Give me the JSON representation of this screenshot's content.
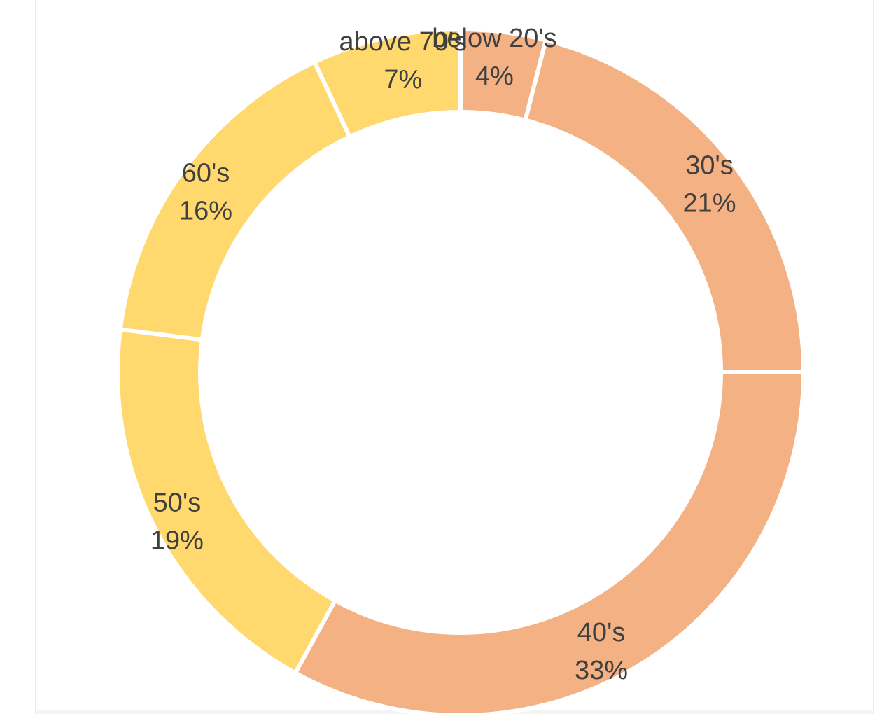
{
  "chart_data": {
    "type": "pie",
    "variant": "donut",
    "title": "",
    "categories": [
      "below 20's",
      "30's",
      "40's",
      "50's",
      "60's",
      "above 70's"
    ],
    "values": [
      4,
      21,
      33,
      19,
      16,
      7
    ],
    "labels": [
      "4%",
      "21%",
      "33%",
      "19%",
      "16%",
      "7%"
    ],
    "colors": [
      "#f4b183",
      "#f4b183",
      "#f4b183",
      "#ffd86e",
      "#ffd86e",
      "#ffd86e"
    ],
    "start": "top, clockwise",
    "legend": "none"
  }
}
